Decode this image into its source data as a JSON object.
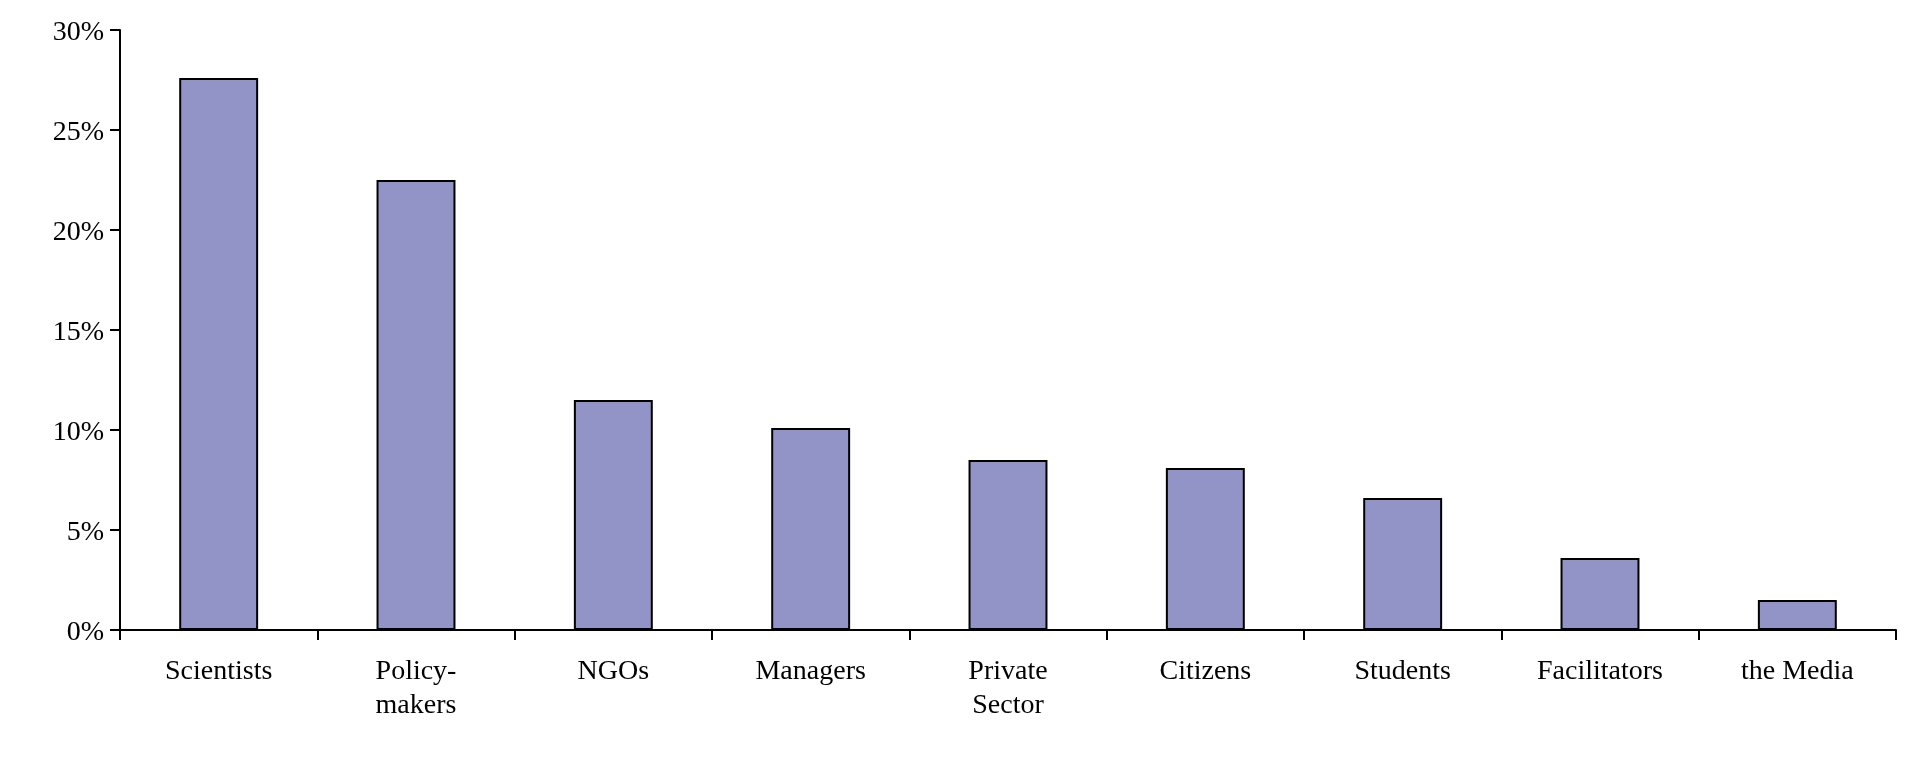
{
  "chart_data": {
    "type": "bar",
    "categories": [
      "Scientists",
      "Policy-\nmakers",
      "NGOs",
      "Managers",
      "Private\nSector",
      "Citizens",
      "Students",
      "Facilitators",
      "the Media"
    ],
    "values": [
      27.6,
      22.5,
      11.5,
      10.1,
      8.5,
      8.1,
      6.6,
      3.6,
      1.5
    ],
    "color": "#9294c8",
    "ylim": [
      0,
      30
    ],
    "yticks": [
      {
        "value": 0,
        "label": "0%"
      },
      {
        "value": 5,
        "label": "5%"
      },
      {
        "value": 10,
        "label": "10%"
      },
      {
        "value": 15,
        "label": "15%"
      },
      {
        "value": 20,
        "label": "20%"
      },
      {
        "value": 25,
        "label": "25%"
      },
      {
        "value": 30,
        "label": "30%"
      }
    ],
    "grid": false
  }
}
